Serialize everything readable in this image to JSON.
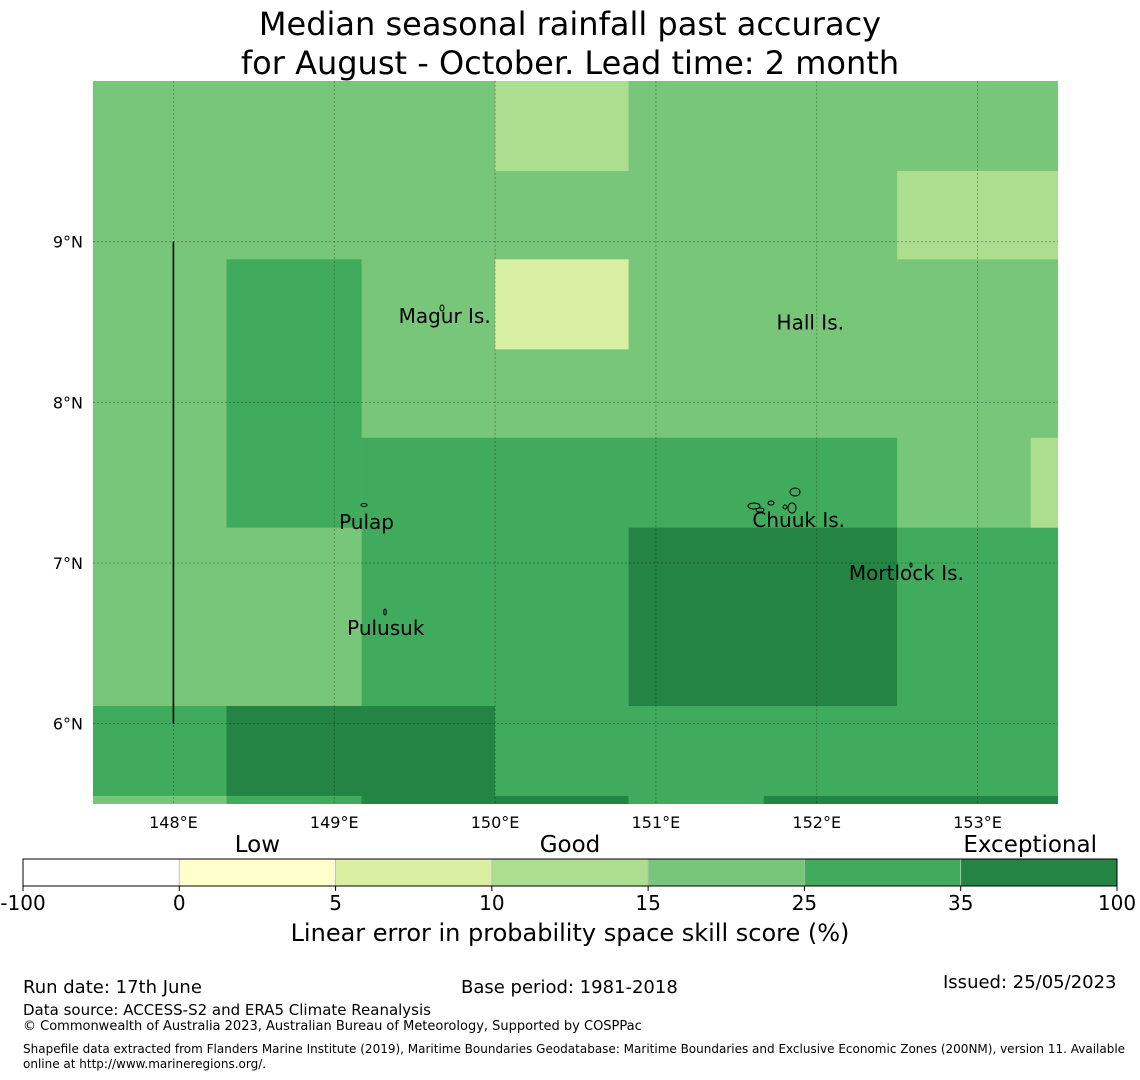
{
  "title": {
    "line1": "Median seasonal rainfall past accuracy",
    "line2": "for August - October. Lead time: 2 month"
  },
  "map": {
    "lon_range": [
      147.5,
      153.5
    ],
    "lat_range": [
      5.5,
      10.0
    ],
    "lon_ticks": [
      {
        "value": 148,
        "label": "148°E"
      },
      {
        "value": 149,
        "label": "149°E"
      },
      {
        "value": 150,
        "label": "150°E"
      },
      {
        "value": 151,
        "label": "151°E"
      },
      {
        "value": 152,
        "label": "152°E"
      },
      {
        "value": 153,
        "label": "153°E"
      }
    ],
    "lat_ticks": [
      {
        "value": 9,
        "label": "9°N"
      },
      {
        "value": 8,
        "label": "8°N"
      },
      {
        "value": 7,
        "label": "7°N"
      },
      {
        "value": 6,
        "label": "6°N"
      }
    ],
    "background_category": 4,
    "cells": [
      {
        "lon": [
          150.0,
          150.83
        ],
        "lat": [
          9.44,
          10.0
        ],
        "category": 3
      },
      {
        "lon": [
          152.5,
          153.5
        ],
        "lat": [
          8.89,
          9.44
        ],
        "category": 3
      },
      {
        "lon": [
          150.0,
          150.83
        ],
        "lat": [
          8.33,
          8.89
        ],
        "category": 2
      },
      {
        "lon": [
          148.33,
          149.17
        ],
        "lat": [
          7.22,
          8.89
        ],
        "category": 5
      },
      {
        "lon": [
          149.17,
          152.5
        ],
        "lat": [
          6.11,
          7.78
        ],
        "category": 5
      },
      {
        "lon": [
          152.5,
          153.5
        ],
        "lat": [
          5.5,
          7.22
        ],
        "category": 5
      },
      {
        "lon": [
          153.33,
          153.5
        ],
        "lat": [
          7.22,
          7.78
        ],
        "category": 3
      },
      {
        "lon": [
          150.83,
          152.5
        ],
        "lat": [
          6.11,
          7.22
        ],
        "category": 6
      },
      {
        "lon": [
          147.5,
          148.33
        ],
        "lat": [
          5.55,
          6.11
        ],
        "category": 5
      },
      {
        "lon": [
          148.33,
          150.0
        ],
        "lat": [
          5.55,
          6.11
        ],
        "category": 6
      },
      {
        "lon": [
          150.0,
          153.5
        ],
        "lat": [
          5.55,
          6.11
        ],
        "category": 5
      },
      {
        "lon": [
          147.5,
          148.33
        ],
        "lat": [
          5.5,
          5.55
        ],
        "category": 4
      },
      {
        "lon": [
          148.33,
          149.17
        ],
        "lat": [
          5.5,
          5.55
        ],
        "category": 5
      },
      {
        "lon": [
          149.17,
          150.83
        ],
        "lat": [
          5.5,
          5.55
        ],
        "category": 6
      },
      {
        "lon": [
          150.83,
          151.67
        ],
        "lat": [
          5.5,
          5.55
        ],
        "category": 5
      },
      {
        "lon": [
          151.67,
          153.5
        ],
        "lat": [
          5.5,
          5.55
        ],
        "category": 6
      }
    ],
    "boundary_line": {
      "lon": 148.0,
      "lat": [
        6.0,
        9.0
      ]
    },
    "places": [
      {
        "name": "Magur Is.",
        "lon": 149.4,
        "lat": 8.53
      },
      {
        "name": "Hall Is.",
        "lon": 151.75,
        "lat": 8.49
      },
      {
        "name": "Pulap",
        "lon": 149.03,
        "lat": 7.25
      },
      {
        "name": "Chuuk Is.",
        "lon": 151.6,
        "lat": 7.26
      },
      {
        "name": "Mortlock Is.",
        "lon": 152.2,
        "lat": 6.93
      },
      {
        "name": "Pulusuk",
        "lon": 149.08,
        "lat": 6.59
      }
    ]
  },
  "legend": {
    "colors": [
      "#ffffff",
      "#ffffcc",
      "#d9f0a3",
      "#addd8e",
      "#78c679",
      "#41ab5d",
      "#238443"
    ],
    "bounds": [
      "-100",
      "0",
      "5",
      "10",
      "15",
      "25",
      "35",
      "100"
    ],
    "category_labels": {
      "low": "Low",
      "good": "Good",
      "exceptional": "Exceptional"
    },
    "axis_label": "Linear error in probability space skill score (%)"
  },
  "footer": {
    "run_date": "Run date: 17th June",
    "base_period": "Base period: 1981-2018",
    "issued": "Issued: 25/05/2023",
    "data_source": "Data source: ACCESS-S2 and ERA5 Climate Reanalysis",
    "copyright": "© Commonwealth of Australia 2023, Australian Bureau of Meteorology, Supported by COSPPac",
    "shapefile_line1": "Shapefile data extracted from Flanders Marine Institute (2019), Maritime Boundaries Geodatabase: Maritime Boundaries and Exclusive Economic Zones (200NM), version 11. Available",
    "shapefile_line2": "online at http://www.marineregions.org/."
  }
}
